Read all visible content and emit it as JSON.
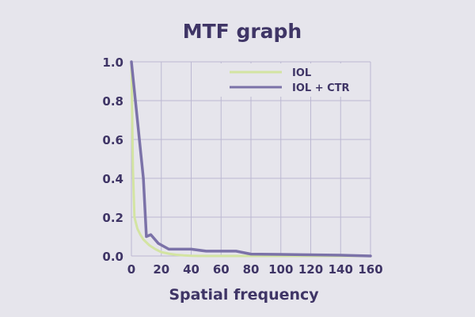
{
  "chart_data": {
    "type": "line",
    "title": "MTF graph",
    "xlabel": "Spatial frequency",
    "ylabel": "",
    "xlim": [
      0,
      160
    ],
    "ylim": [
      0,
      1.0
    ],
    "x_ticks": [
      "0",
      "20",
      "40",
      "60",
      "80",
      "100",
      "120",
      "140",
      "160"
    ],
    "y_ticks": [
      "0.0",
      "0.2",
      "0.4",
      "0.6",
      "0.8",
      "1.0"
    ],
    "grid": true,
    "legend_position": "top-right",
    "series": [
      {
        "name": "IOL",
        "color": "#d3e4a2",
        "x": [
          0,
          1,
          2,
          4,
          6,
          8,
          12,
          16,
          20,
          25,
          30,
          35,
          40,
          50,
          60,
          80,
          100,
          120,
          140,
          160
        ],
        "y": [
          1.0,
          0.45,
          0.2,
          0.14,
          0.11,
          0.085,
          0.055,
          0.035,
          0.02,
          0.012,
          0.006,
          0.003,
          0.001,
          0.0,
          0.0,
          0.0,
          0.0,
          0.0,
          0.0,
          0.0
        ]
      },
      {
        "name": "IOL + CTR",
        "color": "#7b72a8",
        "x": [
          0,
          8,
          10,
          13,
          18,
          25,
          30,
          40,
          50,
          60,
          70,
          80,
          100,
          120,
          140,
          160
        ],
        "y": [
          1.0,
          0.4,
          0.1,
          0.11,
          0.065,
          0.035,
          0.035,
          0.035,
          0.025,
          0.025,
          0.025,
          0.01,
          0.008,
          0.006,
          0.004,
          0.0
        ]
      }
    ]
  }
}
